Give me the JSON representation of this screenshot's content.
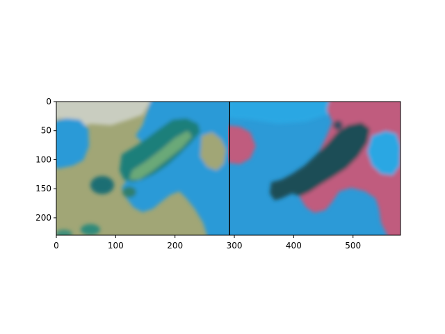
{
  "chart_data": {
    "type": "heatmap",
    "title": "",
    "xlabel": "",
    "ylabel": "",
    "xlim": [
      0,
      580
    ],
    "ylim": [
      230,
      0
    ],
    "grid": false,
    "divider_x": 292,
    "x_ticks": [
      0,
      100,
      200,
      300,
      400,
      500
    ],
    "y_ticks": [
      0,
      50,
      100,
      150,
      200
    ],
    "panels": [
      {
        "name": "left",
        "x_range": [
          0,
          292
        ],
        "colors": {
          "background": "#a1a676",
          "water": "#2c9ad7",
          "pale": "#c9cdc0",
          "green_shape": "#1f7f7a",
          "light_green": "#6aa978",
          "dark_patch": "#1d6e73"
        }
      },
      {
        "name": "right",
        "x_range": [
          292,
          580
        ],
        "colors": {
          "background": "#2c9ad7",
          "pink": "#c05c7e",
          "dark_shape": "#1b4d57",
          "light_blue": "#29a7e3"
        }
      }
    ]
  }
}
